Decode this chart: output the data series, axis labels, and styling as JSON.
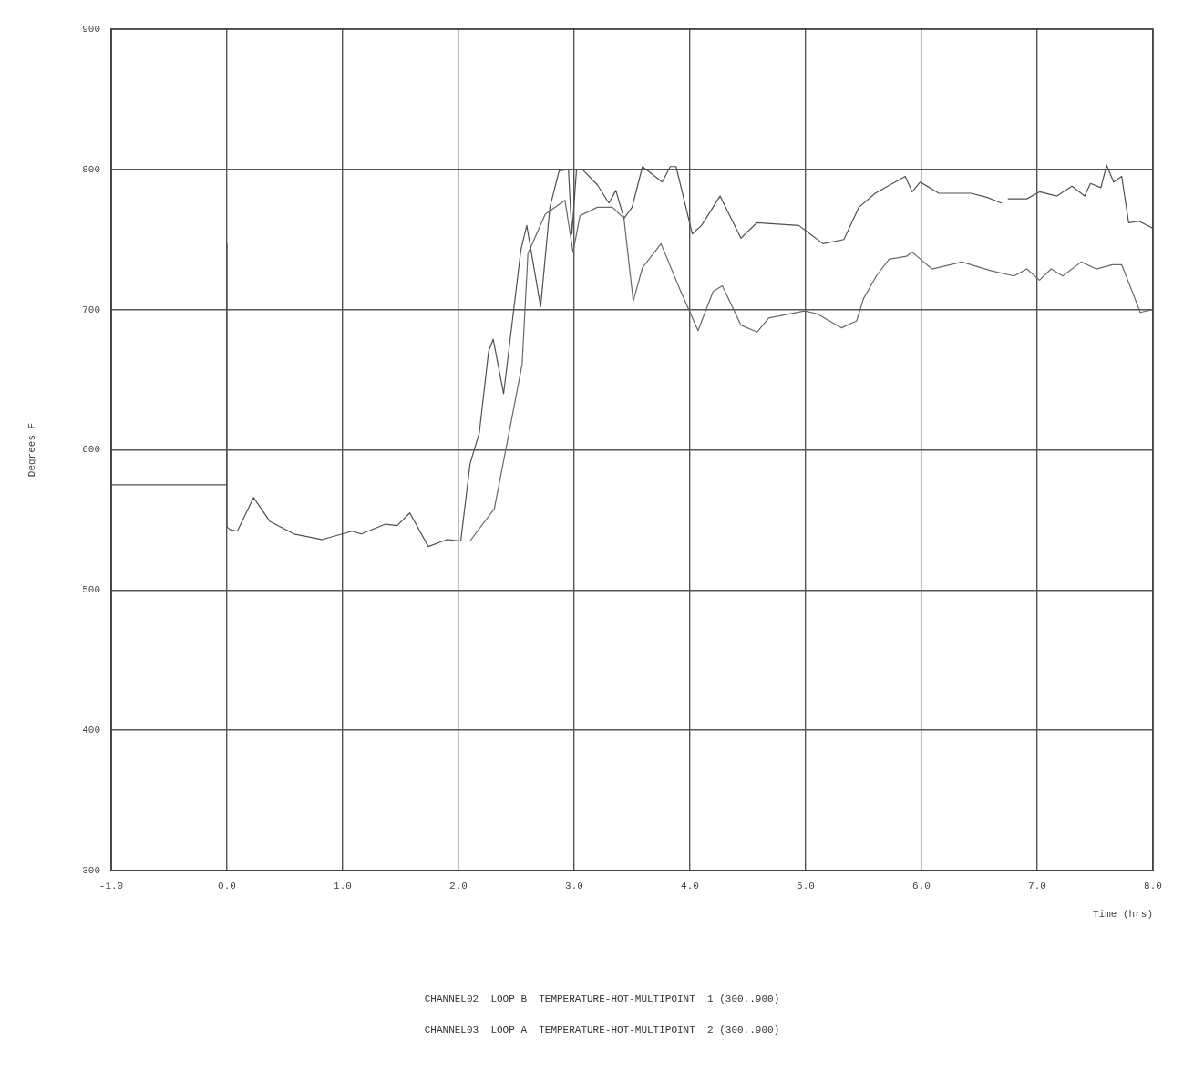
{
  "chart_data": {
    "type": "line",
    "xlabel": "Time (hrs)",
    "ylabel": "Degrees F",
    "xlim": [
      -1,
      8
    ],
    "xticks": [
      {
        "value": -1,
        "label": "-1.0"
      },
      {
        "value": 0,
        "label": "0.0"
      },
      {
        "value": 1,
        "label": "1.0"
      },
      {
        "value": 2,
        "label": "2.0"
      },
      {
        "value": 3,
        "label": "3.0"
      },
      {
        "value": 4,
        "label": "4.0"
      },
      {
        "value": 5,
        "label": "5.0"
      },
      {
        "value": 6,
        "label": "6.0"
      },
      {
        "value": 7,
        "label": "7.0"
      },
      {
        "value": 8,
        "label": "8.0"
      }
    ],
    "ylim": [
      300,
      900
    ],
    "yticks": [
      300,
      400,
      500,
      600,
      700,
      800,
      900
    ],
    "grid": true,
    "legend": false,
    "marker": "none",
    "line_style": "solid",
    "series": [
      {
        "color": "#505050",
        "x": [
          -1,
          0,
          0,
          0,
          0.03,
          0.09,
          0.23,
          0.37,
          0.58,
          0.82,
          1.08,
          1.16,
          1.37,
          1.47,
          1.58,
          1.74,
          1.9,
          2.02,
          2.1,
          2.18,
          2.26,
          2.3,
          2.39,
          2.54,
          2.59,
          2.71,
          2.79,
          2.87,
          2.95,
          2.98,
          3.02,
          3.07,
          3.2,
          3.3,
          3.36,
          3.43,
          3.5,
          3.59,
          3.76,
          3.83,
          3.88,
          4.02,
          4.1,
          4.26,
          4.44,
          4.58,
          4.94,
          5.15,
          5.33,
          5.46,
          5.6,
          5.86,
          5.92,
          5.99,
          6.15,
          6.43,
          6.57,
          6.69,
          6.72,
          6.75,
          6.91,
          7.02,
          7.17,
          7.3,
          7.41,
          7.46,
          7.55,
          7.6,
          7.66,
          7.73,
          7.79,
          7.88,
          8
        ],
        "values": [
          575,
          575,
          747,
          545,
          543,
          542,
          566,
          549,
          540,
          536,
          542,
          540,
          547,
          546,
          555,
          531,
          536,
          535,
          590,
          612,
          670,
          679,
          640,
          743,
          760,
          702,
          773,
          799,
          800,
          754,
          800,
          800,
          789,
          776,
          785,
          765,
          773,
          802,
          791,
          802,
          802,
          754,
          760,
          781,
          751,
          762,
          760,
          747,
          750,
          773,
          783,
          795,
          784,
          791,
          783,
          783,
          780,
          776,
          null,
          779,
          779,
          784,
          781,
          788,
          781,
          790,
          787,
          803,
          791,
          795,
          762,
          763,
          758
        ]
      },
      {
        "color": "#686868",
        "x": [
          2.02,
          2.1,
          2.31,
          2.46,
          2.55,
          2.6,
          2.75,
          2.92,
          2.99,
          3.05,
          3.2,
          3.33,
          3.43,
          3.51,
          3.59,
          3.75,
          3.91,
          4.07,
          4.2,
          4.28,
          4.44,
          4.58,
          4.68,
          4.99,
          5.1,
          5.31,
          5.44,
          5.5,
          5.61,
          5.72,
          5.87,
          5.92,
          6.09,
          6.35,
          6.59,
          6.8,
          6.91,
          7.02,
          7.12,
          7.22,
          7.38,
          7.51,
          7.65,
          7.73,
          7.83,
          7.89,
          8
        ],
        "values": [
          535,
          535,
          558,
          622,
          661,
          740,
          768,
          778,
          741,
          767,
          773,
          773,
          765,
          706,
          730,
          747,
          715,
          685,
          713,
          717,
          689,
          684,
          694,
          699,
          697,
          687,
          692,
          708,
          724,
          736,
          738,
          741,
          729,
          734,
          728,
          724,
          729,
          721,
          729,
          724,
          734,
          729,
          732,
          732,
          711,
          698,
          700
        ]
      }
    ],
    "annotations": [
      "CHANNEL02  LOOP B  TEMPERATURE-HOT-MULTIPOINT  1 (300..900)",
      "CHANNEL03  LOOP A  TEMPERATURE-HOT-MULTIPOINT  2 (300..900)"
    ]
  }
}
